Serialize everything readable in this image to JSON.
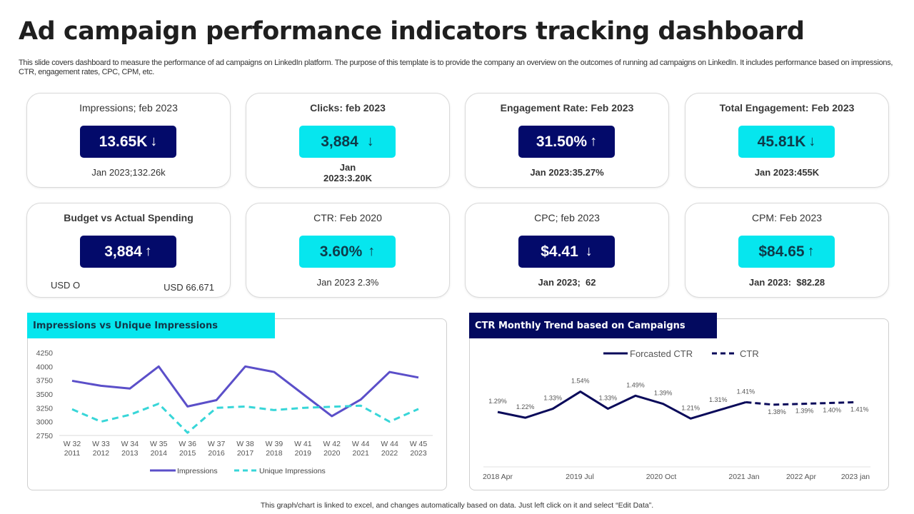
{
  "header": {
    "title": "Ad campaign performance indicators tracking dashboard",
    "subtitle": "This slide covers dashboard to measure the performance of ad campaigns on LinkedIn platform. The purpose of this template is to provide the company an overview on the outcomes of running ad campaigns on LinkedIn. It includes performance based on impressions, CTR, engagement rates, CPC, CPM, etc."
  },
  "colors": {
    "dark_navy": "#030a6a",
    "cyan": "#06e6ee",
    "impressions_line": "#5b4fc9",
    "unique_line": "#38d6d8",
    "ctr_line": "#0a0a5a"
  },
  "kpis": [
    {
      "title": "Impressions; feb 2023",
      "value": "13.65K",
      "arrow": "↓",
      "comparison": "Jan 2023;132.26k",
      "style": "dark"
    },
    {
      "title": "Clicks: feb 2023",
      "value": "3,884",
      "arrow": "↓",
      "comparison_line1": "Jan",
      "comparison_line2": "2023:3.20K",
      "style": "cyan"
    },
    {
      "title": "Engagement Rate: Feb 2023",
      "value": "31.50%",
      "arrow": "↑",
      "comparison": "Jan 2023:35.27%",
      "style": "dark"
    },
    {
      "title": "Total Engagement: Feb 2023",
      "value": "45.81K",
      "arrow": "↓",
      "comparison": "Jan 2023:455K",
      "style": "cyan"
    },
    {
      "title": "Budget vs Actual Spending",
      "value": "3,884",
      "arrow": "↑",
      "budget": "USD O",
      "actual": "USD 66.671",
      "style": "dark"
    },
    {
      "title": "CTR: Feb 2020",
      "value": "3.60%",
      "arrow": "↑",
      "comparison": "Jan 2023 2.3%",
      "style": "cyan"
    },
    {
      "title": "CPC; feb 2023",
      "value": "$4.41",
      "arrow": "↓",
      "comparison": "Jan 2023;  62",
      "style": "dark"
    },
    {
      "title": "CPM: Feb 2023",
      "value": "$84.65",
      "arrow": "↑",
      "comparison": "Jan 2023:  $82.28",
      "style": "cyan"
    }
  ],
  "chart_data": [
    {
      "type": "line",
      "title": "Impressions vs Unique Impressions",
      "categories": [
        "W 32 2011",
        "W 33 2012",
        "W 34 2013",
        "W 35 2014",
        "W 36 2015",
        "W 37 2016",
        "W 38 2017",
        "W 39 2018",
        "W 41 2019",
        "W 42 2020",
        "W 44 2021",
        "W 44 2022",
        "W 45 2023"
      ],
      "category_lines": [
        [
          "W 32",
          "2011"
        ],
        [
          "W 33",
          "2012"
        ],
        [
          "W 34",
          "2013"
        ],
        [
          "W 35",
          "2014"
        ],
        [
          "W 36",
          "2015"
        ],
        [
          "W 37",
          "2016"
        ],
        [
          "W 38",
          "2017"
        ],
        [
          "W 39",
          "2018"
        ],
        [
          "W 41",
          "2019"
        ],
        [
          "W 42",
          "2020"
        ],
        [
          "W 44",
          "2021"
        ],
        [
          "W 44",
          "2022"
        ],
        [
          "W 45",
          "2023"
        ]
      ],
      "series": [
        {
          "name": "Impressions",
          "style": "solid",
          "values": [
            3740,
            3650,
            3600,
            4000,
            3275,
            3390,
            4000,
            3900,
            3500,
            3100,
            3400,
            3900,
            3800
          ]
        },
        {
          "name": "Unique Impressions",
          "style": "dashed",
          "values": [
            3225,
            3000,
            3125,
            3325,
            2800,
            3250,
            3275,
            3210,
            3250,
            3270,
            3290,
            3000,
            3230
          ]
        }
      ],
      "ylim": [
        2750,
        4250
      ],
      "yticks": [
        "4250",
        "4000",
        "3750",
        "3500",
        "3250",
        "3000",
        "2750"
      ],
      "legend": "bottom",
      "grid": false
    },
    {
      "type": "line",
      "title": "CTR Monthly Trend based on Campaigns",
      "series": [
        {
          "name": "Forcasted CTR",
          "style": "solid",
          "values": [
            1.29,
            1.22,
            1.33,
            1.54,
            1.33,
            1.49,
            1.39,
            1.21,
            1.31,
            1.41
          ],
          "labels": [
            "1.29%",
            "1.22%",
            "1.33%",
            "1.54%",
            "1.33%",
            "1.49%",
            "1.39%",
            "1.21%",
            "1.31%",
            "1.41%"
          ]
        },
        {
          "name": "CTR",
          "style": "dashed",
          "values": [
            1.41,
            1.38,
            1.39,
            1.4,
            1.41
          ],
          "labels": [
            "",
            "1.38%",
            "1.39%",
            "1.40%",
            "1.41%"
          ]
        }
      ],
      "xtick_labels": [
        "2018 Apr",
        "2019 Jul",
        "2020 Oct",
        "2021 Jan",
        "2022 Apr",
        "2023 jan"
      ],
      "ylim": [
        0.6,
        2.0
      ],
      "legend": "top",
      "grid": false
    }
  ],
  "footer": {
    "note": "This graph/chart is linked to excel, and changes automatically based on data. Just left click on it and select “Edit Data”."
  }
}
